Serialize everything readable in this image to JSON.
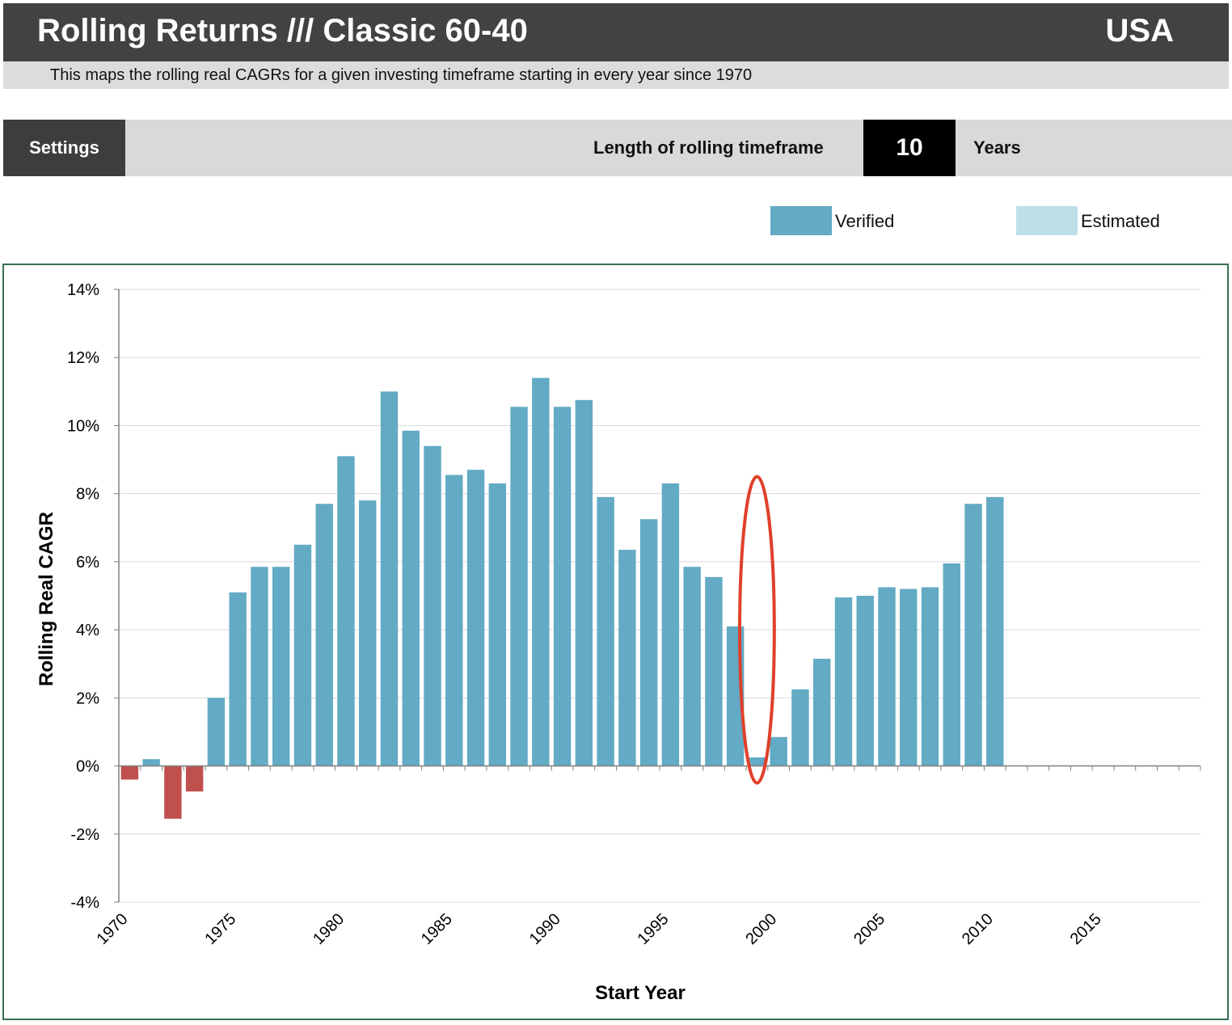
{
  "header": {
    "title": "Rolling Returns /// Classic 60-40",
    "region": "USA"
  },
  "subtitle": "This maps the rolling real CAGRs for a given investing timeframe starting in every year since 1970",
  "settings": {
    "button_label": "Settings",
    "timeframe_label": "Length of rolling timeframe",
    "timeframe_value": "10",
    "timeframe_unit": "Years"
  },
  "legend": {
    "verified": {
      "label": "Verified",
      "color": "#63aac4"
    },
    "estimated": {
      "label": "Estimated",
      "color": "#bddfe9"
    }
  },
  "colors": {
    "positive": "#63aac4",
    "negative": "#c0504d",
    "annotation": "#e0402a"
  },
  "chart_data": {
    "type": "bar",
    "xlabel": "Start Year",
    "ylabel": "Rolling Real CAGR",
    "ylim": [
      -4,
      14
    ],
    "yticks": [
      -4,
      -2,
      0,
      2,
      4,
      6,
      8,
      10,
      12,
      14
    ],
    "ytick_labels": [
      "-4%",
      "-2%",
      "0%",
      "2%",
      "4%",
      "6%",
      "8%",
      "10%",
      "12%",
      "14%"
    ],
    "xlim": [
      1970,
      2019
    ],
    "xtick_labels": [
      "1970",
      "1975",
      "1980",
      "1985",
      "1990",
      "1995",
      "2000",
      "2005",
      "2010",
      "2015"
    ],
    "grid": true,
    "categories": [
      1970,
      1971,
      1972,
      1973,
      1974,
      1975,
      1976,
      1977,
      1978,
      1979,
      1980,
      1981,
      1982,
      1983,
      1984,
      1985,
      1986,
      1987,
      1988,
      1989,
      1990,
      1991,
      1992,
      1993,
      1994,
      1995,
      1996,
      1997,
      1998,
      1999,
      2000,
      2001,
      2002,
      2003,
      2004,
      2005,
      2006,
      2007,
      2008,
      2009,
      2010
    ],
    "series": [
      {
        "values": [
          -0.4,
          0.2,
          -1.55,
          -0.75,
          2.0,
          5.1,
          5.85,
          5.85,
          6.5,
          7.7,
          9.1,
          7.8,
          11.0,
          9.85,
          9.4,
          8.55,
          8.7,
          8.3,
          10.55,
          11.4,
          10.55,
          10.75,
          7.9,
          6.35,
          7.25,
          8.3,
          5.85,
          5.55,
          4.1,
          0.25,
          0.85,
          2.25,
          3.15,
          4.95,
          5.0,
          5.25,
          5.2,
          5.25,
          5.95,
          7.7,
          7.9
        ]
      }
    ],
    "annotation": {
      "shape": "ellipse",
      "x_center": 1999,
      "y_range": [
        -0.5,
        8.5
      ]
    }
  }
}
